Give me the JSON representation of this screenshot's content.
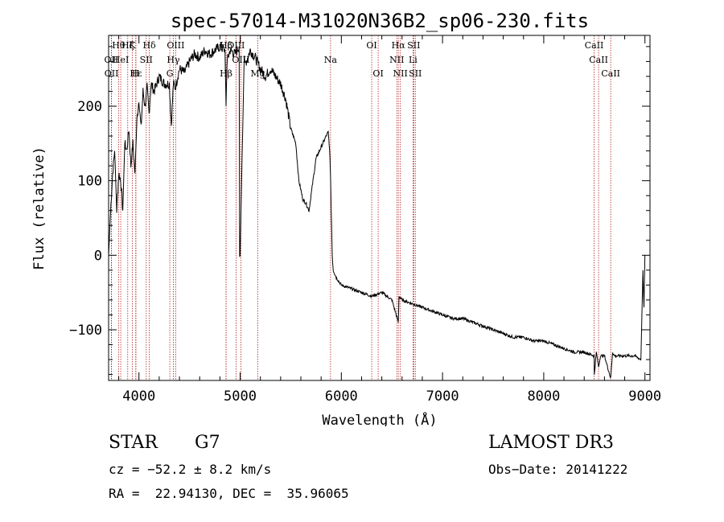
{
  "chart_data": {
    "type": "line",
    "title": "spec-57014-M31020N36B2_sp06-230.fits",
    "xlabel": "Wavelength (Å)",
    "ylabel": "Flux (relative)",
    "xlim": [
      3700,
      9050
    ],
    "ylim": [
      -168,
      295
    ],
    "x_ticks": [
      4000,
      5000,
      6000,
      7000,
      8000,
      9000
    ],
    "y_ticks": [
      -100,
      0,
      100,
      200
    ],
    "series": [
      {
        "name": "flux",
        "x": [
          3700,
          3720,
          3740,
          3760,
          3780,
          3800,
          3820,
          3840,
          3860,
          3880,
          3900,
          3920,
          3940,
          3960,
          3980,
          4000,
          4020,
          4040,
          4060,
          4080,
          4100,
          4120,
          4150,
          4200,
          4250,
          4300,
          4320,
          4340,
          4360,
          4400,
          4450,
          4500,
          4550,
          4600,
          4650,
          4700,
          4750,
          4800,
          4850,
          4861,
          4870,
          4900,
          4950,
          4990,
          4995,
          5000,
          5040,
          5045,
          5100,
          5150,
          5200,
          5250,
          5300,
          5350,
          5400,
          5450,
          5500,
          5550,
          5580,
          5620,
          5650,
          5680,
          5700,
          5720,
          5750,
          5800,
          5850,
          5870,
          5880,
          5890,
          5896,
          5900,
          5910,
          5920,
          5950,
          6000,
          6100,
          6200,
          6300,
          6400,
          6500,
          6563,
          6570,
          6600,
          6700,
          6800,
          6900,
          7000,
          7100,
          7200,
          7300,
          7400,
          7500,
          7600,
          7700,
          7800,
          7900,
          8000,
          8100,
          8200,
          8300,
          8400,
          8498,
          8500,
          8520,
          8542,
          8560,
          8600,
          8662,
          8680,
          8700,
          8800,
          8900,
          8960,
          8980,
          8990,
          9000
        ],
        "y": [
          0,
          60,
          110,
          140,
          60,
          110,
          100,
          60,
          150,
          140,
          170,
          120,
          150,
          110,
          180,
          210,
          170,
          220,
          200,
          225,
          190,
          230,
          220,
          240,
          230,
          230,
          175,
          230,
          225,
          250,
          245,
          260,
          270,
          265,
          275,
          270,
          275,
          280,
          275,
          200,
          260,
          275,
          270,
          280,
          0,
          0,
          270,
          255,
          275,
          265,
          250,
          240,
          250,
          240,
          230,
          210,
          170,
          150,
          100,
          75,
          70,
          60,
          80,
          100,
          130,
          145,
          160,
          165,
          150,
          120,
          90,
          60,
          0,
          -20,
          -30,
          -40,
          -45,
          -50,
          -55,
          -50,
          -60,
          -90,
          -55,
          -60,
          -65,
          -70,
          -75,
          -80,
          -85,
          -85,
          -90,
          -95,
          -100,
          -105,
          -110,
          -110,
          -115,
          -115,
          -120,
          -125,
          -130,
          -130,
          -135,
          -160,
          -130,
          -150,
          -135,
          -135,
          -165,
          -130,
          -135,
          -135,
          -135,
          -140,
          -20,
          -70,
          0
        ]
      }
    ],
    "emission_lines": [
      {
        "label": "Hθ",
        "x": 3798,
        "row": 0
      },
      {
        "label": "Hζ",
        "x": 3889,
        "row": 0
      },
      {
        "label": "K",
        "x": 3934,
        "row": 0
      },
      {
        "label": "Hδ",
        "x": 4102,
        "row": 0
      },
      {
        "label": "OIII",
        "x": 4363,
        "row": 0
      },
      {
        "label": "Hβ",
        "x": 4861,
        "row": 0
      },
      {
        "label": "OIII",
        "x": 4959,
        "row": 0
      },
      {
        "label": "OI",
        "x": 6300,
        "row": 0
      },
      {
        "label": "Hα",
        "x": 6563,
        "row": 0
      },
      {
        "label": "SII",
        "x": 6716,
        "row": 0
      },
      {
        "label": "CaII",
        "x": 8498,
        "row": 0
      },
      {
        "label": "OII",
        "x": 3727,
        "row": 1
      },
      {
        "label": "HeI",
        "x": 3820,
        "row": 1
      },
      {
        "label": "SII",
        "x": 4072,
        "row": 1
      },
      {
        "label": "Hγ",
        "x": 4340,
        "row": 1
      },
      {
        "label": "OIII",
        "x": 5007,
        "row": 1
      },
      {
        "label": "Na",
        "x": 5893,
        "row": 1
      },
      {
        "label": "NII",
        "x": 6548,
        "row": 1
      },
      {
        "label": "Li",
        "x": 6708,
        "row": 1
      },
      {
        "label": "CaII",
        "x": 8542,
        "row": 1
      },
      {
        "label": "OII",
        "x": 3729,
        "row": 2
      },
      {
        "label": "Hε",
        "x": 3970,
        "row": 2
      },
      {
        "label": "H",
        "x": 3968,
        "row": 2
      },
      {
        "label": "G",
        "x": 4305,
        "row": 2
      },
      {
        "label": "Hβ",
        "x": 4861,
        "row": 2
      },
      {
        "label": "Mg",
        "x": 5175,
        "row": 2
      },
      {
        "label": "OI",
        "x": 6364,
        "row": 2
      },
      {
        "label": "NII",
        "x": 6583,
        "row": 2
      },
      {
        "label": "SII",
        "x": 6731,
        "row": 2
      },
      {
        "label": "CaII",
        "x": 8662,
        "row": 2
      }
    ]
  },
  "info": {
    "class": "STAR",
    "subclass": "G7",
    "survey": "LAMOST DR3",
    "cz": "cz = −52.2 ± 8.2 km/s",
    "obs_date": "Obs−Date: 20141222",
    "radec": "RA =  22.94130, DEC =  35.96065"
  }
}
